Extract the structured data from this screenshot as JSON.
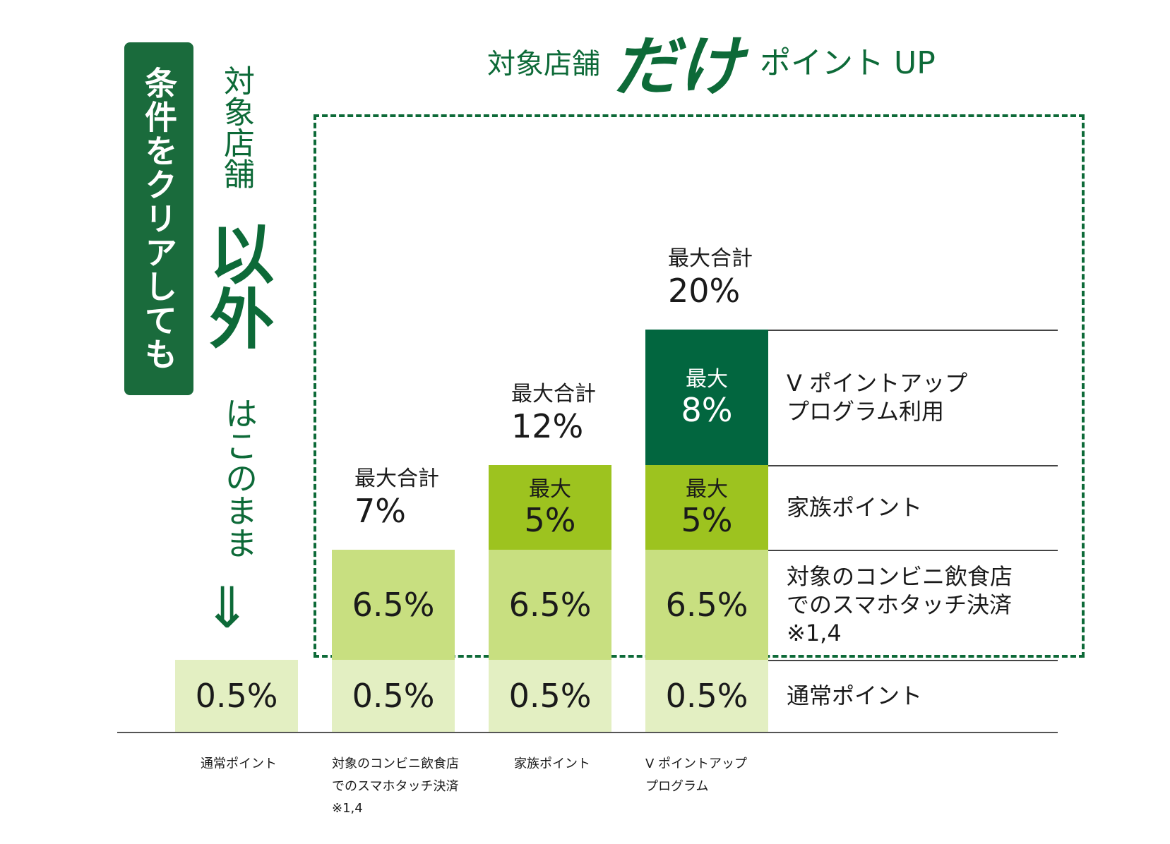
{
  "title": {
    "prefix": "対象店舗",
    "emphasis": "だけ",
    "suffix": "ポイント UP"
  },
  "badge_text": "条件をクリアしても",
  "side_text": {
    "top": "対象店舗",
    "emphasis": "以外",
    "bottom": "はこのまま",
    "arrow": "⇓"
  },
  "colors": {
    "base": "#e3efc2",
    "conv": "#c8df80",
    "family": "#9dc31f",
    "vpoint": "#02663f",
    "accent": "#0d6a38"
  },
  "chart_data": {
    "type": "bar",
    "stacked": true,
    "unit": "%",
    "categories": [
      "通常ポイント",
      "対象のコンビニ飲食店\nでのスマホタッチ決済\n※1,4",
      "家族ポイント",
      "V ポイントアップ\nプログラム"
    ],
    "series": [
      {
        "name": "通常ポイント",
        "legend": "通常ポイント",
        "values": [
          0.5,
          0.5,
          0.5,
          0.5
        ],
        "labels": [
          "0.5%",
          "0.5%",
          "0.5%",
          "0.5%"
        ],
        "sub_labels": [
          "",
          "",
          "",
          ""
        ],
        "color_key": "base"
      },
      {
        "name": "対象のコンビニ飲食店でのスマホタッチ決済",
        "legend": "対象のコンビニ飲食店\nでのスマホタッチ決済\n※1,4",
        "values": [
          0,
          6.5,
          6.5,
          6.5
        ],
        "labels": [
          "",
          "6.5%",
          "6.5%",
          "6.5%"
        ],
        "sub_labels": [
          "",
          "",
          "",
          ""
        ],
        "color_key": "conv"
      },
      {
        "name": "家族ポイント",
        "legend": "家族ポイント",
        "values": [
          0,
          0,
          5,
          5
        ],
        "labels": [
          "",
          "",
          "5%",
          "5%"
        ],
        "sub_labels": [
          "",
          "",
          "最大",
          "最大"
        ],
        "color_key": "family"
      },
      {
        "name": "V ポイントアッププログラム利用",
        "legend": "V ポイントアップ\nプログラム利用",
        "values": [
          0,
          0,
          0,
          8
        ],
        "labels": [
          "",
          "",
          "",
          "8%"
        ],
        "sub_labels": [
          "",
          "",
          "",
          "最大"
        ],
        "color_key": "vpoint"
      }
    ],
    "totals": [
      {
        "label": "",
        "value": ""
      },
      {
        "label": "最大合計",
        "value": "7%"
      },
      {
        "label": "最大合計",
        "value": "12%"
      },
      {
        "label": "最大合計",
        "value": "20%"
      }
    ]
  }
}
